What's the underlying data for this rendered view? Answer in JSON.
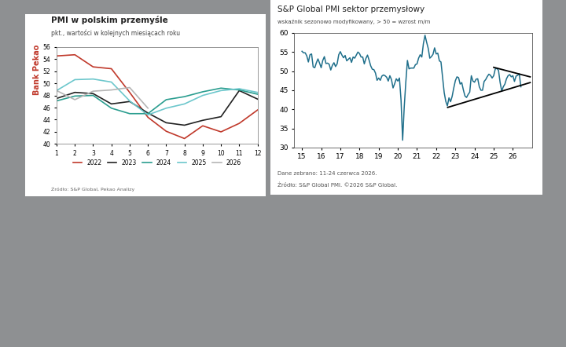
{
  "chart_data": [
    {
      "type": "line",
      "title": "PMI w polskim przemyśle",
      "subtitle": "pkt., wartości w kolejnych miesiącach roku",
      "brand": "Bank Pekao",
      "notes": [
        "Źródło: S&P Global, Pekao Analizy"
      ],
      "x": [
        1,
        2,
        3,
        4,
        5,
        6,
        7,
        8,
        9,
        10,
        11,
        12
      ],
      "xlim": [
        1,
        12
      ],
      "xticks": [
        1,
        2,
        3,
        4,
        5,
        6,
        7,
        8,
        9,
        10,
        11,
        12
      ],
      "ylim": [
        40,
        56
      ],
      "yticks": [
        40,
        42,
        44,
        46,
        48,
        50,
        52,
        54,
        56
      ],
      "grid": false,
      "legend": "bottom",
      "series": [
        {
          "name": "2022",
          "color": "#c0392b",
          "values": [
            54.5,
            54.7,
            52.7,
            52.4,
            48.5,
            44.4,
            42.1,
            40.9,
            43.0,
            42.0,
            43.4,
            45.6
          ]
        },
        {
          "name": "2023",
          "color": "#222222",
          "values": [
            47.5,
            48.5,
            48.3,
            46.6,
            47.0,
            45.1,
            43.5,
            43.1,
            43.9,
            44.5,
            48.8,
            47.4
          ]
        },
        {
          "name": "2024",
          "color": "#2a9d8f",
          "values": [
            47.1,
            47.9,
            48.0,
            45.9,
            45.0,
            45.0,
            47.3,
            47.8,
            48.6,
            49.2,
            48.9,
            48.2
          ]
        },
        {
          "name": "2025",
          "color": "#6cc7cc",
          "values": [
            48.8,
            50.6,
            50.7,
            50.2,
            47.1,
            44.8,
            45.9,
            46.6,
            48.0,
            48.8,
            49.1,
            48.5
          ]
        },
        {
          "name": "2026",
          "color": "#b5b5b5",
          "values": [
            48.8,
            47.3,
            48.7,
            48.9,
            49.3,
            45.9,
            null,
            null,
            null,
            null,
            null,
            null
          ]
        }
      ]
    },
    {
      "type": "line",
      "title": "S&P Global PMI sektor przemysłowy",
      "subtitle": "wskaźnik sezonowo modyfikowany, > 50 = wzrost m/m",
      "notes": [
        "Dane zebrano: 11-24 czerwca 2026.",
        "Źródło: S&P Global PMI. ©2026 S&P Global."
      ],
      "xlim": [
        14.6,
        27.0
      ],
      "xticks": [
        15,
        16,
        17,
        18,
        19,
        20,
        21,
        22,
        23,
        24,
        25,
        26
      ],
      "ylim": [
        30,
        60
      ],
      "yticks": [
        30,
        35,
        40,
        45,
        50,
        55,
        60
      ],
      "grid": false,
      "x": [
        15.0,
        15.083,
        15.167,
        15.25,
        15.333,
        15.417,
        15.5,
        15.583,
        15.667,
        15.75,
        15.833,
        15.917,
        16.0,
        16.083,
        16.167,
        16.25,
        16.333,
        16.417,
        16.5,
        16.583,
        16.667,
        16.75,
        16.833,
        16.917,
        17.0,
        17.083,
        17.167,
        17.25,
        17.333,
        17.417,
        17.5,
        17.583,
        17.667,
        17.75,
        17.833,
        17.917,
        18.0,
        18.083,
        18.167,
        18.25,
        18.333,
        18.417,
        18.5,
        18.583,
        18.667,
        18.75,
        18.833,
        18.917,
        19.0,
        19.083,
        19.167,
        19.25,
        19.333,
        19.417,
        19.5,
        19.583,
        19.667,
        19.75,
        19.833,
        19.917,
        20.0,
        20.083,
        20.167,
        20.25,
        20.333,
        20.417,
        20.5,
        20.583,
        20.667,
        20.75,
        20.833,
        20.917,
        21.0,
        21.083,
        21.167,
        21.25,
        21.333,
        21.417,
        21.5,
        21.583,
        21.667,
        21.75,
        21.833,
        21.917,
        22.0,
        22.083,
        22.167,
        22.25,
        22.333,
        22.417,
        22.5,
        22.583,
        22.667,
        22.75,
        22.833,
        22.917,
        23.0,
        23.083,
        23.167,
        23.25,
        23.333,
        23.417,
        23.5,
        23.583,
        23.667,
        23.75,
        23.833,
        23.917,
        24.0,
        24.083,
        24.167,
        24.25,
        24.333,
        24.417,
        24.5,
        24.583,
        24.667,
        24.75,
        24.833,
        24.917,
        25.0,
        25.083,
        25.167,
        25.25,
        25.333,
        25.417,
        25.5,
        25.583,
        25.667,
        25.75,
        25.833,
        25.917,
        26.0,
        26.083,
        26.167,
        26.25,
        26.333,
        26.417
      ],
      "series": [
        {
          "name": "PMI",
          "color": "#1f6f8b",
          "values": [
            55.2,
            54.8,
            54.8,
            54.0,
            52.4,
            54.3,
            54.5,
            51.1,
            50.9,
            52.2,
            53.2,
            52.1,
            50.9,
            52.8,
            53.8,
            52.0,
            52.1,
            51.8,
            50.3,
            51.5,
            52.2,
            51.2,
            51.9,
            54.3,
            55.1,
            54.2,
            53.5,
            54.1,
            52.7,
            53.1,
            53.5,
            52.3,
            53.7,
            53.4,
            54.2,
            55.0,
            54.6,
            53.7,
            53.7,
            51.9,
            53.3,
            54.2,
            52.9,
            51.4,
            50.5,
            50.4,
            49.5,
            47.6,
            48.2,
            47.6,
            48.7,
            49.0,
            48.8,
            48.4,
            47.4,
            48.8,
            47.8,
            45.6,
            46.7,
            48.0,
            47.4,
            48.2,
            42.4,
            31.9,
            40.6,
            47.2,
            52.8,
            50.6,
            50.8,
            50.8,
            50.8,
            51.7,
            51.9,
            53.4,
            54.3,
            53.7,
            57.2,
            59.4,
            57.6,
            56.0,
            53.4,
            53.8,
            54.4,
            56.1,
            54.5,
            54.7,
            52.7,
            52.4,
            48.5,
            44.4,
            42.1,
            40.9,
            43.0,
            42.0,
            43.4,
            45.6,
            47.5,
            48.5,
            48.3,
            46.6,
            47.0,
            45.1,
            43.5,
            43.1,
            43.9,
            44.5,
            48.8,
            47.4,
            47.1,
            47.9,
            48.0,
            45.9,
            45.0,
            45.0,
            47.3,
            47.8,
            48.6,
            49.2,
            48.9,
            48.2,
            48.8,
            50.6,
            50.7,
            50.2,
            47.1,
            44.8,
            45.9,
            46.6,
            48.0,
            48.8,
            49.1,
            48.5,
            48.8,
            47.3,
            48.7,
            48.9,
            49.3,
            45.9
          ]
        }
      ],
      "trend_lines": [
        {
          "color": "#000000",
          "x": [
            25.0,
            26.9
          ],
          "y": [
            51.0,
            48.5
          ]
        },
        {
          "color": "#000000",
          "x": [
            22.6,
            26.9
          ],
          "y": [
            40.5,
            47.0
          ]
        }
      ]
    }
  ]
}
